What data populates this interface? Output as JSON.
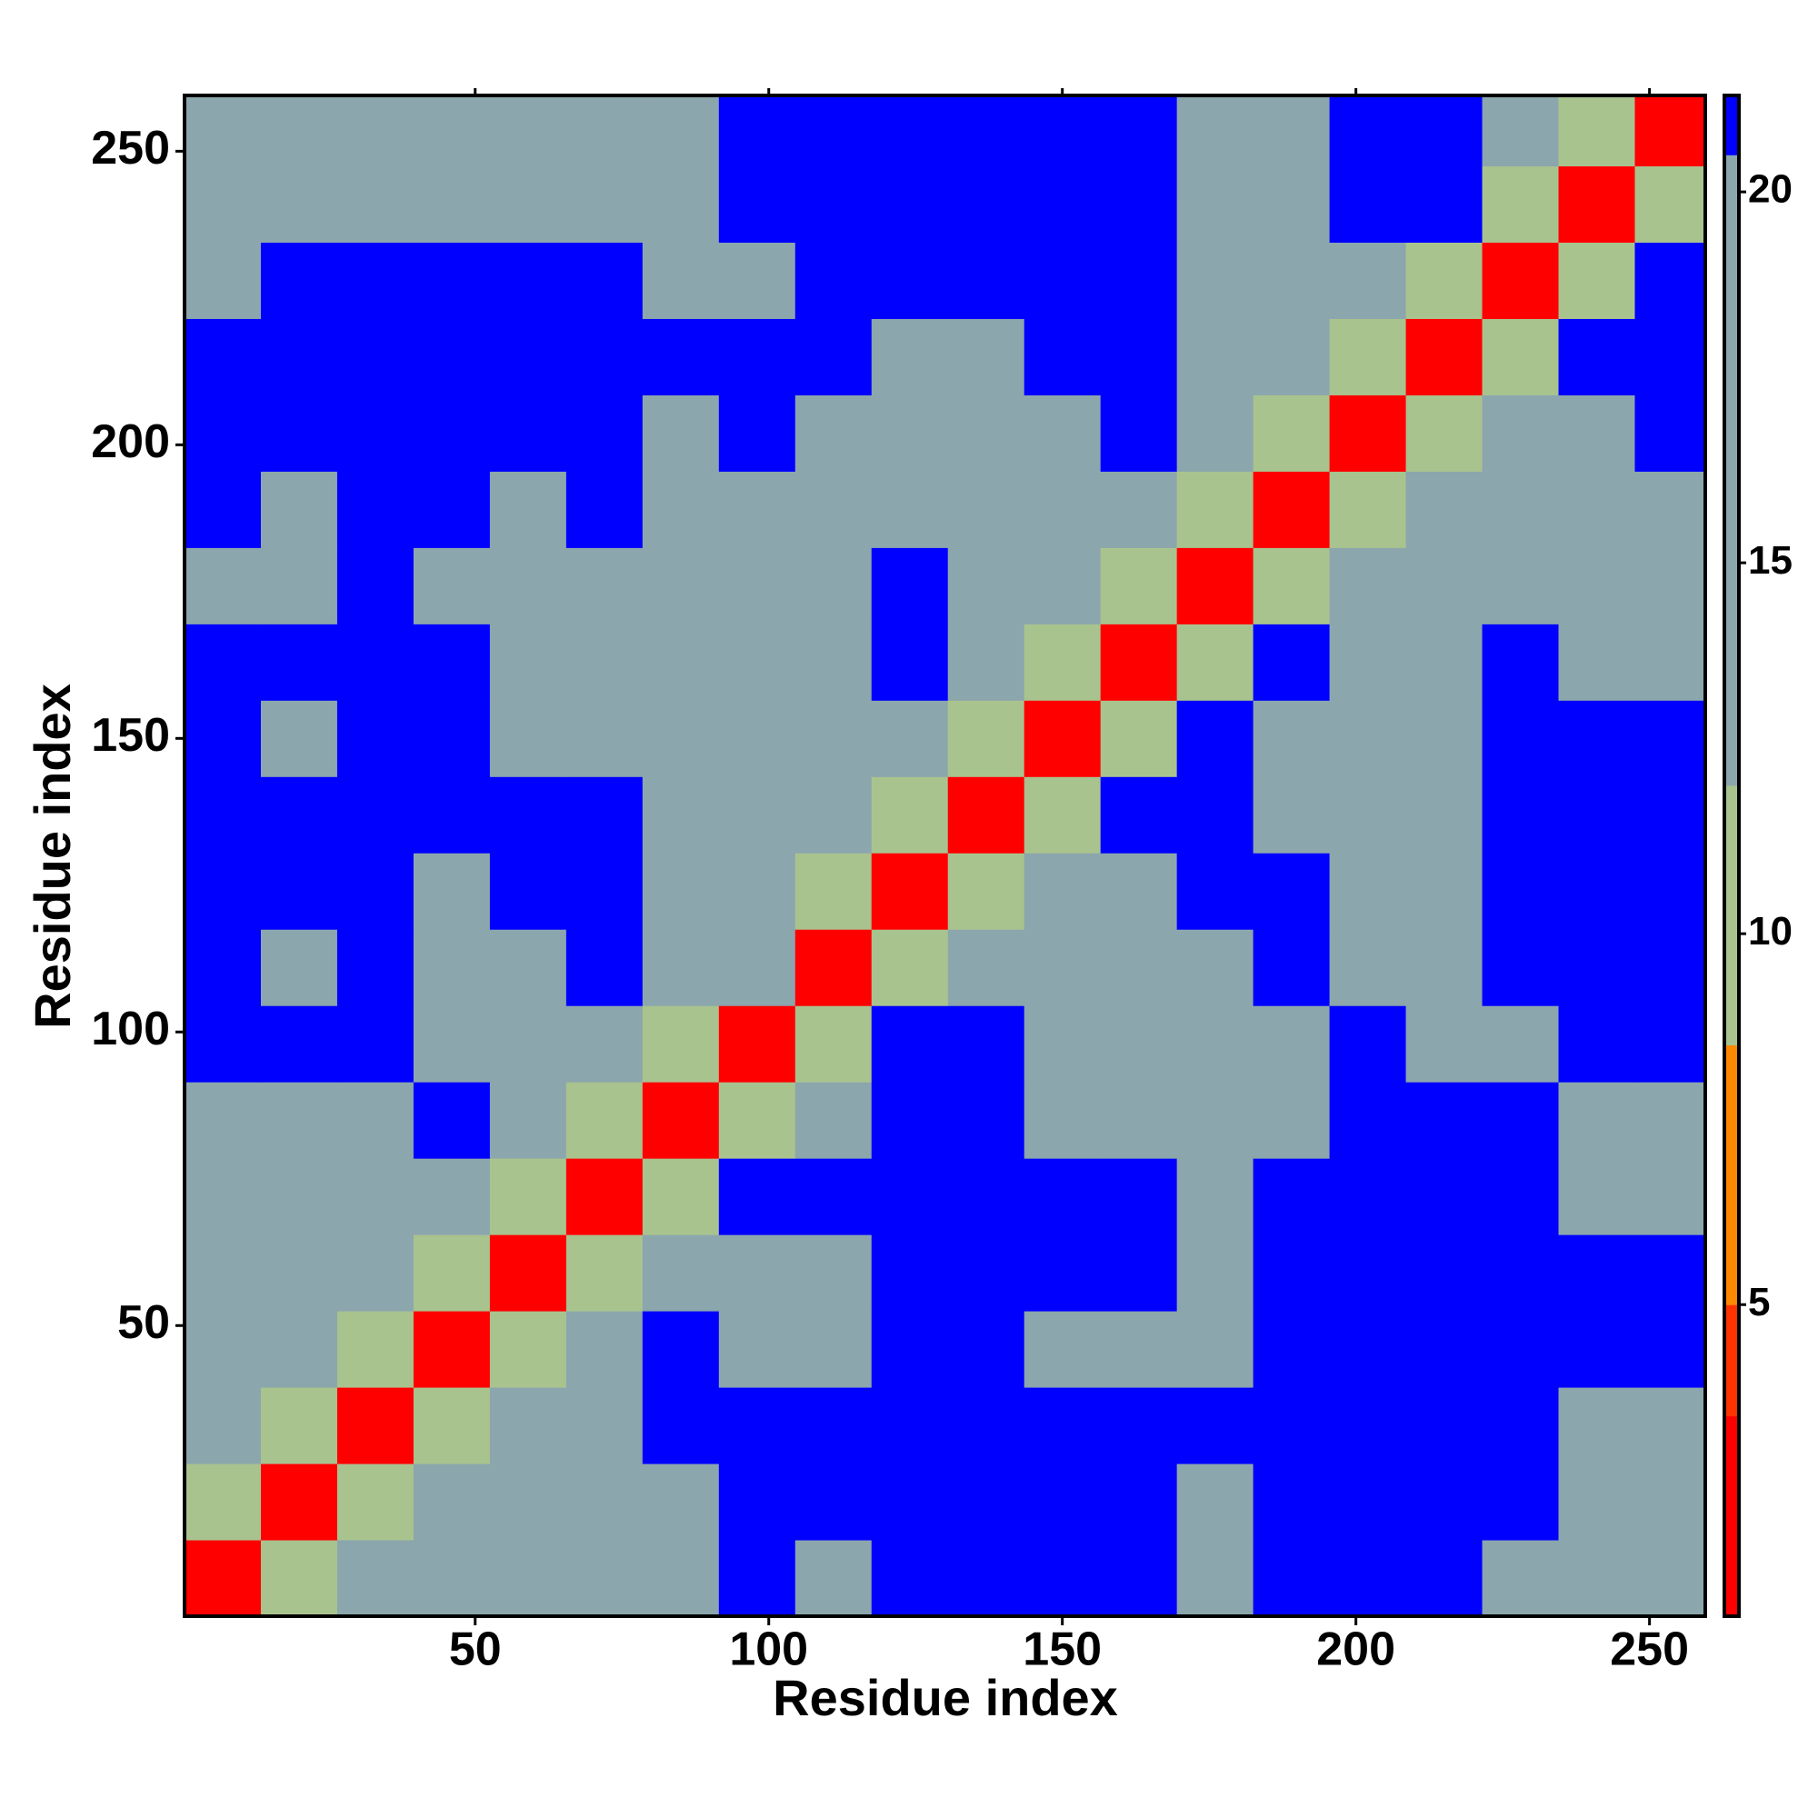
{
  "chart_data": {
    "type": "heatmap",
    "x_label": "Residue index",
    "y_label": "Residue index",
    "x_bins": [
      0.5,
      13.5,
      26.5,
      39.5,
      52.5,
      65.5,
      78.5,
      91.5,
      104.5,
      117.5,
      130.5,
      143.5,
      156.5,
      169.5,
      182.5,
      195.5,
      208.5,
      221.5,
      234.5,
      247.5,
      259.5
    ],
    "y_bins": [
      0.5,
      13.5,
      26.5,
      39.5,
      52.5,
      65.5,
      78.5,
      91.5,
      104.5,
      117.5,
      130.5,
      143.5,
      156.5,
      169.5,
      182.5,
      195.5,
      208.5,
      221.5,
      234.5,
      247.5,
      259.5
    ],
    "xlim": [
      0.5,
      259.5
    ],
    "ylim": [
      0.5,
      259.5
    ],
    "xticks": [
      50,
      100,
      150,
      200,
      250
    ],
    "yticks": [
      50,
      100,
      150,
      200,
      250
    ],
    "zlim": [
      0.8,
      21.3
    ],
    "zticks": [
      5,
      10,
      15,
      20
    ],
    "colorscale": [
      [
        0.8,
        "#ff0000"
      ],
      [
        3.5,
        "#ff3300"
      ],
      [
        5,
        "#ff8800"
      ],
      [
        8.5,
        "#a9c38f"
      ],
      [
        12,
        "#8ca6ad"
      ],
      [
        20.5,
        "#0000ff"
      ]
    ],
    "z": [
      [
        3,
        10,
        13,
        13,
        13,
        13,
        13,
        21,
        13,
        21,
        21,
        21,
        21,
        13,
        21,
        21,
        21,
        13,
        13,
        13
      ],
      [
        10,
        3,
        10,
        13,
        13,
        13,
        13,
        21,
        21,
        21,
        21,
        21,
        21,
        13,
        21,
        21,
        21,
        21,
        13,
        13
      ],
      [
        13,
        10,
        3,
        10,
        13,
        13,
        21,
        21,
        21,
        21,
        21,
        21,
        21,
        21,
        21,
        21,
        21,
        21,
        13,
        13
      ],
      [
        13,
        13,
        10,
        3,
        10,
        13,
        21,
        13,
        13,
        21,
        21,
        13,
        13,
        13,
        21,
        21,
        21,
        21,
        21,
        21
      ],
      [
        13,
        13,
        13,
        10,
        3,
        10,
        13,
        13,
        13,
        21,
        21,
        21,
        21,
        13,
        21,
        21,
        21,
        21,
        21,
        21
      ],
      [
        13,
        13,
        13,
        13,
        10,
        3,
        10,
        21,
        21,
        21,
        21,
        21,
        21,
        13,
        21,
        21,
        21,
        21,
        13,
        13
      ],
      [
        13,
        13,
        13,
        21,
        13,
        10,
        3,
        10,
        13,
        21,
        21,
        13,
        13,
        13,
        13,
        21,
        21,
        21,
        13,
        13
      ],
      [
        21,
        21,
        21,
        13,
        13,
        13,
        10,
        3,
        10,
        21,
        21,
        13,
        13,
        13,
        13,
        21,
        13,
        13,
        21,
        21
      ],
      [
        21,
        13,
        21,
        13,
        13,
        21,
        13,
        13,
        3,
        10,
        13,
        13,
        13,
        13,
        21,
        13,
        13,
        21,
        21,
        21
      ],
      [
        21,
        21,
        21,
        13,
        21,
        21,
        13,
        13,
        10,
        3,
        10,
        13,
        13,
        21,
        21,
        13,
        13,
        21,
        21,
        21
      ],
      [
        21,
        21,
        21,
        21,
        21,
        21,
        13,
        13,
        13,
        10,
        3,
        10,
        21,
        21,
        13,
        13,
        13,
        21,
        21,
        21
      ],
      [
        21,
        13,
        21,
        21,
        13,
        13,
        13,
        13,
        13,
        13,
        10,
        3,
        10,
        21,
        13,
        13,
        13,
        21,
        21,
        21
      ],
      [
        21,
        21,
        21,
        21,
        13,
        13,
        13,
        13,
        13,
        21,
        13,
        10,
        3,
        10,
        21,
        13,
        13,
        21,
        13,
        13
      ],
      [
        13,
        13,
        21,
        13,
        13,
        13,
        13,
        13,
        13,
        21,
        13,
        13,
        10,
        3,
        10,
        13,
        13,
        13,
        13,
        13
      ],
      [
        21,
        13,
        21,
        21,
        13,
        21,
        13,
        13,
        13,
        13,
        13,
        13,
        13,
        10,
        3,
        10,
        13,
        13,
        13,
        13
      ],
      [
        21,
        21,
        21,
        21,
        21,
        21,
        13,
        21,
        13,
        13,
        13,
        13,
        21,
        13,
        10,
        3,
        10,
        13,
        13,
        21
      ],
      [
        21,
        21,
        21,
        21,
        21,
        21,
        21,
        21,
        21,
        13,
        13,
        21,
        21,
        13,
        13,
        10,
        3,
        10,
        21,
        21
      ],
      [
        13,
        21,
        21,
        21,
        21,
        21,
        13,
        13,
        21,
        21,
        21,
        21,
        21,
        13,
        13,
        13,
        10,
        3,
        10,
        21
      ],
      [
        13,
        13,
        13,
        13,
        13,
        13,
        13,
        21,
        21,
        21,
        21,
        21,
        21,
        13,
        13,
        21,
        21,
        10,
        3,
        10
      ],
      [
        13,
        13,
        13,
        13,
        13,
        13,
        13,
        21,
        21,
        21,
        21,
        21,
        21,
        13,
        13,
        21,
        21,
        13,
        10,
        3
      ]
    ]
  }
}
